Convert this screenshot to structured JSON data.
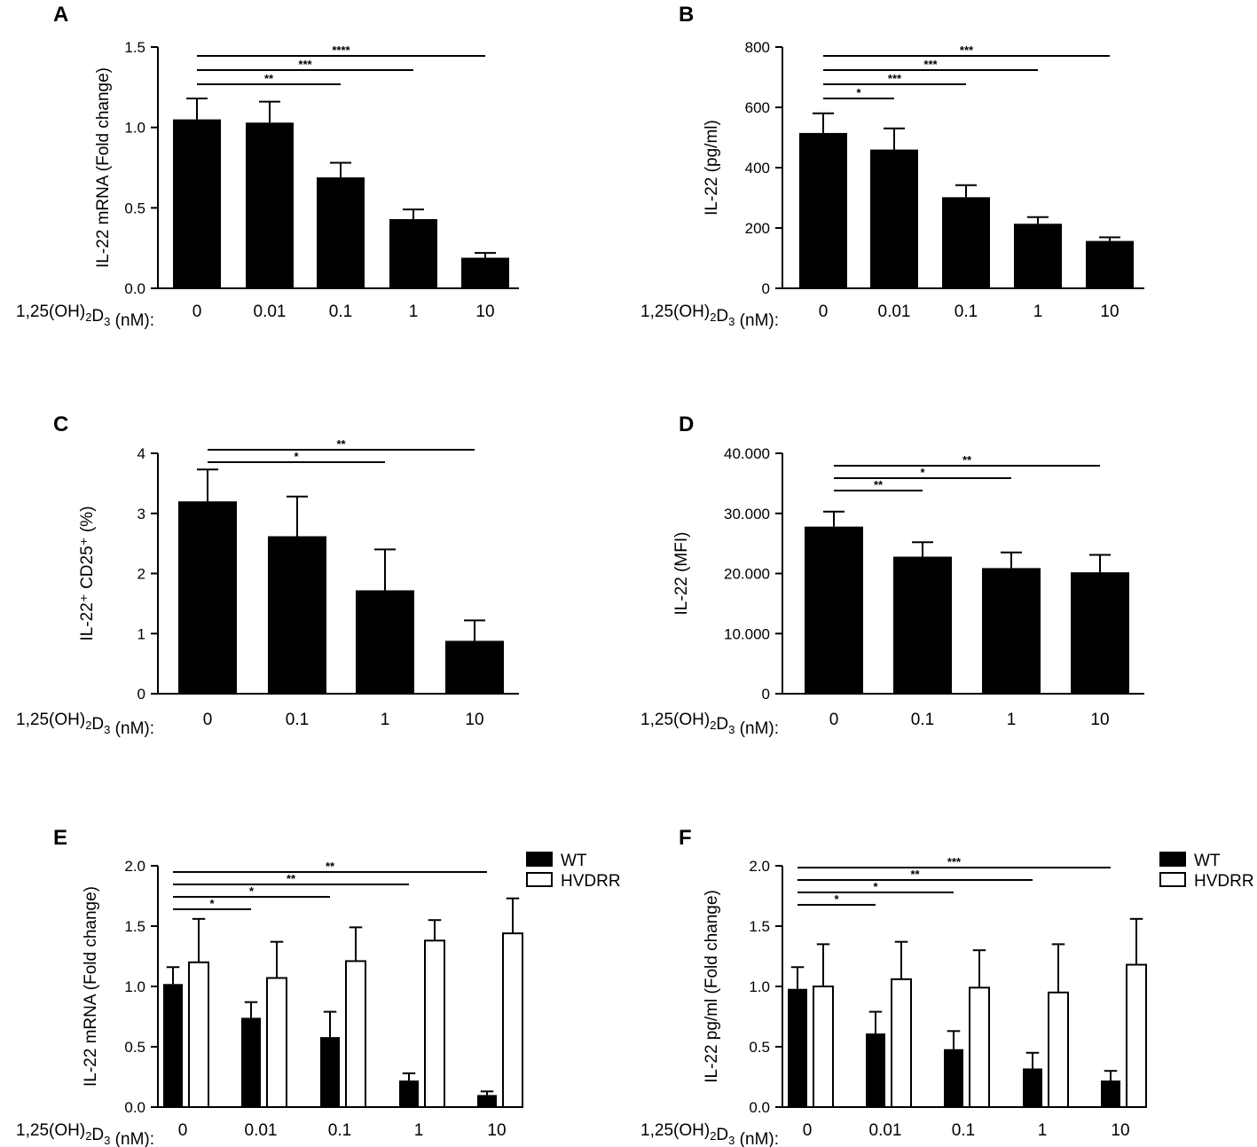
{
  "chart_data": [
    {
      "panel": "A",
      "type": "bar",
      "ylabel": "IL-22 mRNA (Fold change)",
      "xlabel_prefix": "1,25(OH)",
      "xlabel_sub1": "2",
      "xlabel_mid": "D",
      "xlabel_sub2": "3",
      "xlabel_suffix": " (nM):",
      "categories": [
        "0",
        "0.01",
        "0.1",
        "1",
        "10"
      ],
      "ylim": [
        0,
        1.5
      ],
      "yticks": [
        0,
        0.5,
        1.0,
        1.5
      ],
      "ytick_labels": [
        "0.0",
        "0.5",
        "1.0",
        "1.5"
      ],
      "series": [
        {
          "name": "",
          "fill": "#000000",
          "values": [
            1.05,
            1.03,
            0.69,
            0.43,
            0.19
          ],
          "errors": [
            0.13,
            0.13,
            0.09,
            0.06,
            0.03
          ]
        }
      ],
      "significance": [
        {
          "from": 0,
          "to": 2,
          "label": "**"
        },
        {
          "from": 0,
          "to": 3,
          "label": "***"
        },
        {
          "from": 0,
          "to": 4,
          "label": "****"
        }
      ]
    },
    {
      "panel": "B",
      "type": "bar",
      "ylabel": "IL-22 (pg/ml)",
      "xlabel_prefix": "1,25(OH)",
      "xlabel_sub1": "2",
      "xlabel_mid": "D",
      "xlabel_sub2": "3",
      "xlabel_suffix": " (nM):",
      "categories": [
        "0",
        "0.01",
        "0.1",
        "1",
        "10"
      ],
      "ylim": [
        0,
        800
      ],
      "yticks": [
        0,
        200,
        400,
        600,
        800
      ],
      "ytick_labels": [
        "0",
        "200",
        "400",
        "600",
        "800"
      ],
      "series": [
        {
          "name": "",
          "fill": "#000000",
          "values": [
            515,
            460,
            302,
            214,
            157
          ],
          "errors": [
            65,
            70,
            40,
            22,
            12
          ]
        }
      ],
      "significance": [
        {
          "from": 0,
          "to": 1,
          "label": "*"
        },
        {
          "from": 0,
          "to": 2,
          "label": "***"
        },
        {
          "from": 0,
          "to": 3,
          "label": "***"
        },
        {
          "from": 0,
          "to": 4,
          "label": "***"
        }
      ]
    },
    {
      "panel": "C",
      "type": "bar",
      "ylabel": "IL-22⁺ CD25⁺ (%)",
      "xlabel_prefix": "1,25(OH)",
      "xlabel_sub1": "2",
      "xlabel_mid": "D",
      "xlabel_sub2": "3",
      "xlabel_suffix": " (nM):",
      "categories": [
        "0",
        "0.1",
        "1",
        "10"
      ],
      "ylim": [
        0,
        4
      ],
      "yticks": [
        0,
        1,
        2,
        3,
        4
      ],
      "ytick_labels": [
        "0",
        "1",
        "2",
        "3",
        "4"
      ],
      "series": [
        {
          "name": "",
          "fill": "#000000",
          "values": [
            3.2,
            2.62,
            1.72,
            0.88
          ],
          "errors": [
            0.53,
            0.66,
            0.68,
            0.34
          ]
        }
      ],
      "significance": [
        {
          "from": 0,
          "to": 2,
          "label": "*"
        },
        {
          "from": 0,
          "to": 3,
          "label": "**"
        }
      ]
    },
    {
      "panel": "D",
      "type": "bar",
      "ylabel": "IL-22 (MFI)",
      "xlabel_prefix": "1,25(OH)",
      "xlabel_sub1": "2",
      "xlabel_mid": "D",
      "xlabel_sub2": "3",
      "xlabel_suffix": " (nM):",
      "categories": [
        "0",
        "0.1",
        "1",
        "10"
      ],
      "ylim": [
        0,
        40000
      ],
      "yticks": [
        0,
        10000,
        20000,
        30000,
        40000
      ],
      "ytick_labels": [
        "0",
        "10.000",
        "20.000",
        "30.000",
        "40.000"
      ],
      "series": [
        {
          "name": "",
          "fill": "#000000",
          "values": [
            27800,
            22800,
            20900,
            20200
          ],
          "errors": [
            2500,
            2400,
            2600,
            2900
          ]
        }
      ],
      "significance": [
        {
          "from": 0,
          "to": 1,
          "label": "**"
        },
        {
          "from": 0,
          "to": 2,
          "label": "*"
        },
        {
          "from": 0,
          "to": 3,
          "label": "**"
        }
      ]
    },
    {
      "panel": "E",
      "type": "bar",
      "ylabel": "IL-22 mRNA (Fold change)",
      "xlabel_prefix": "1,25(OH)",
      "xlabel_sub1": "2",
      "xlabel_mid": "D",
      "xlabel_sub2": "3",
      "xlabel_suffix": " (nM):",
      "categories": [
        "0",
        "0.01",
        "0.1",
        "1",
        "10"
      ],
      "ylim": [
        0,
        2.0
      ],
      "yticks": [
        0,
        0.5,
        1.0,
        1.5,
        2.0
      ],
      "ytick_labels": [
        "0.0",
        "0.5",
        "1.0",
        "1.5",
        "2.0"
      ],
      "series": [
        {
          "name": "WT",
          "fill": "#000000",
          "values": [
            1.02,
            0.74,
            0.58,
            0.22,
            0.1
          ],
          "errors": [
            0.14,
            0.13,
            0.21,
            0.06,
            0.03
          ]
        },
        {
          "name": "HVDRR",
          "fill": "#ffffff",
          "values": [
            1.2,
            1.07,
            1.21,
            1.38,
            1.44
          ],
          "errors": [
            0.36,
            0.3,
            0.28,
            0.17,
            0.29
          ]
        }
      ],
      "legend": [
        "WT",
        "HVDRR"
      ],
      "significance": [
        {
          "from": 0,
          "to": 1,
          "label": "*"
        },
        {
          "from": 0,
          "to": 2,
          "label": "*"
        },
        {
          "from": 0,
          "to": 3,
          "label": "**"
        },
        {
          "from": 0,
          "to": 4,
          "label": "**"
        }
      ]
    },
    {
      "panel": "F",
      "type": "bar",
      "ylabel": "IL-22 pg/ml (Fold change)",
      "xlabel_prefix": "1,25(OH)",
      "xlabel_sub1": "2",
      "xlabel_mid": "D",
      "xlabel_sub2": "3",
      "xlabel_suffix": " (nM):",
      "categories": [
        "0",
        "0.01",
        "0.1",
        "1",
        "10"
      ],
      "ylim": [
        0,
        2.0
      ],
      "yticks": [
        0,
        0.5,
        1.0,
        1.5,
        2.0
      ],
      "ytick_labels": [
        "0.0",
        "0.5",
        "1.0",
        "1.5",
        "2.0"
      ],
      "series": [
        {
          "name": "WT",
          "fill": "#000000",
          "values": [
            0.98,
            0.61,
            0.48,
            0.32,
            0.22
          ],
          "errors": [
            0.18,
            0.18,
            0.15,
            0.13,
            0.08
          ]
        },
        {
          "name": "HVDRR",
          "fill": "#ffffff",
          "values": [
            1.0,
            1.06,
            0.99,
            0.95,
            1.18
          ],
          "errors": [
            0.35,
            0.31,
            0.31,
            0.4,
            0.38
          ]
        }
      ],
      "legend": [
        "WT",
        "HVDRR"
      ],
      "significance": [
        {
          "from": 0,
          "to": 1,
          "label": "*"
        },
        {
          "from": 0,
          "to": 2,
          "label": "*"
        },
        {
          "from": 0,
          "to": 3,
          "label": "**"
        },
        {
          "from": 0,
          "to": 4,
          "label": "***"
        }
      ]
    }
  ]
}
